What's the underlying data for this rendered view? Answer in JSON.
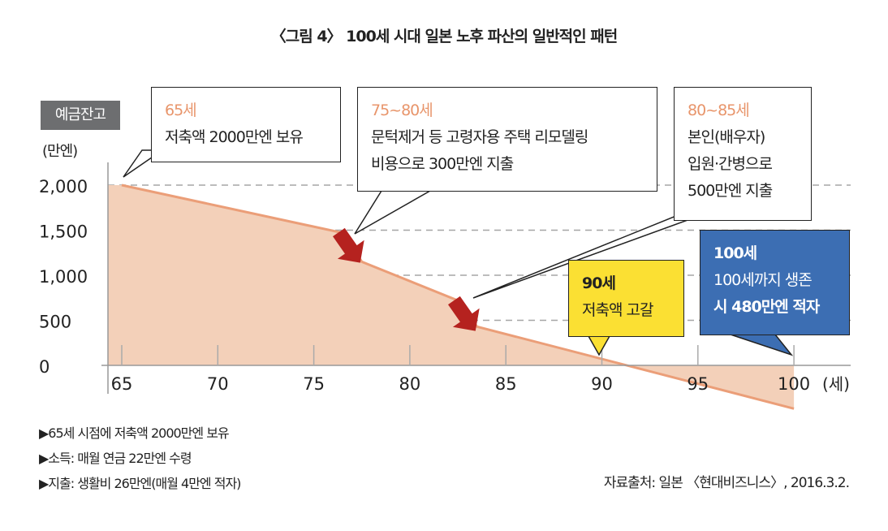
{
  "chart_data": {
    "type": "area",
    "title": "〈그림 4〉 100세 시대 일본 노후 파산의 일반적인 패턴",
    "ylabel": "예금잔고",
    "yunit": "(만엔)",
    "xunit": "(세)",
    "x_ticks": [
      65,
      70,
      75,
      80,
      85,
      90,
      95,
      100
    ],
    "y_ticks": [
      0,
      500,
      1000,
      1500,
      2000
    ],
    "y_tick_labels": [
      "0",
      "500",
      "1,000",
      "1,500",
      "2,000"
    ],
    "xlim": [
      65,
      100
    ],
    "ylim": [
      0,
      2000
    ],
    "grid": "horizontal dashed",
    "series": [
      {
        "name": "예금잔고",
        "x": [
          65,
          76.5,
          77.5,
          82.5,
          83.5,
          100
        ],
        "y": [
          2000,
          1470,
          1150,
          720,
          430,
          -480
        ]
      }
    ],
    "annotations": [
      {
        "title": "65세",
        "lines": [
          "저축액 2000만엔 보유"
        ]
      },
      {
        "title": "75~80세",
        "lines": [
          "문턱제거 등 고령자용 주택 리모델링",
          "비용으로 300만엔 지출"
        ]
      },
      {
        "title": "80~85세",
        "lines": [
          "본인(배우자)",
          "입원·간병으로",
          "500만엔 지출"
        ]
      },
      {
        "title": "90세",
        "lines": [
          "저축액 고갈"
        ]
      },
      {
        "title": "100세",
        "lines": [
          "100세까지 생존",
          "시 480만엔 적자"
        ]
      }
    ]
  },
  "notes": [
    "▶65세 시점에 저축액 2000만엔 보유",
    "▶소득: 매월 연금 22만엔 수령",
    "▶지출: 생활비 26만엔(매월 4만엔 적자)"
  ],
  "source": "자료출처: 일본 〈현대비즈니스〉, 2016.3.2.",
  "colors": {
    "area": "#f3d0b9",
    "line": "#eb9e78",
    "arrow": "#b5221f",
    "yellow": "#fbe033",
    "blue": "#3c6eb3",
    "gray": "#6d6e70"
  }
}
